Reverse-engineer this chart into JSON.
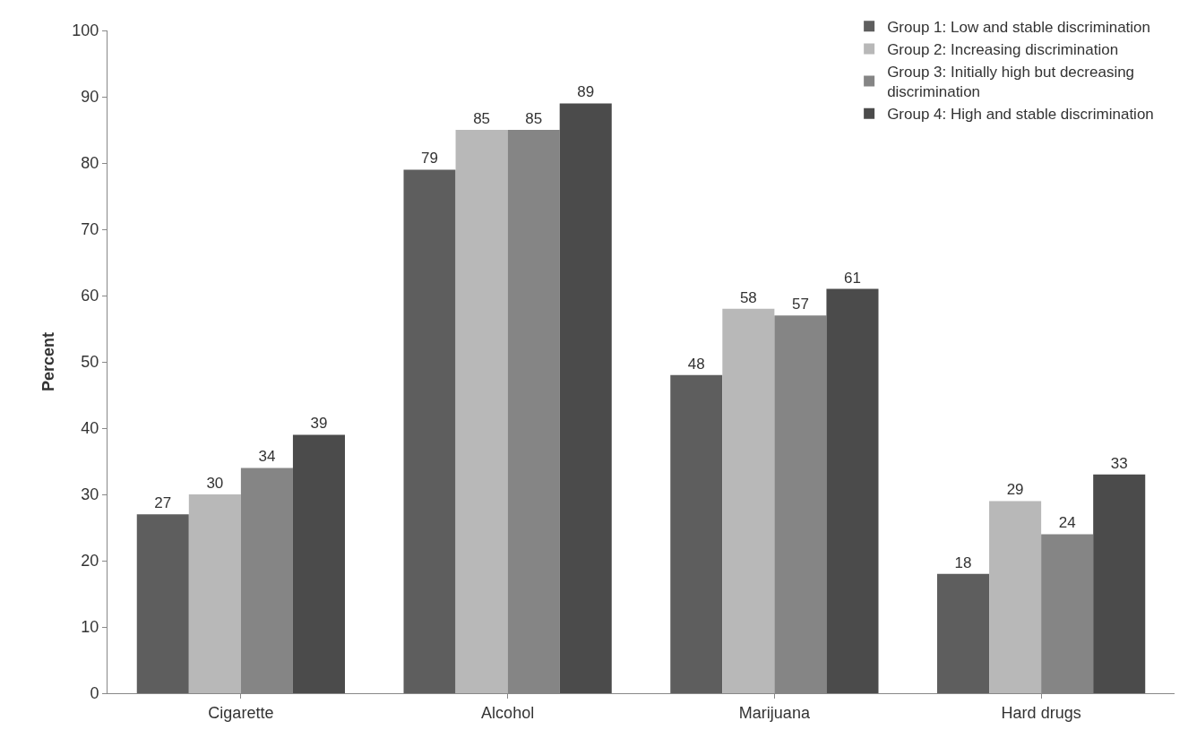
{
  "chart_data": {
    "type": "bar",
    "ylabel": "Percent",
    "categories": [
      "Cigarette",
      "Alcohol",
      "Marijuana",
      "Hard drugs"
    ],
    "series": [
      {
        "name": "Group 1: Low and stable discrimination",
        "color": "#5e5e5e",
        "values": [
          27,
          79,
          48,
          18
        ]
      },
      {
        "name": "Group 2: Increasing discrimination",
        "color": "#b8b8b8",
        "values": [
          30,
          85,
          58,
          29
        ]
      },
      {
        "name": "Group 3: Initially high but decreasing discrimination",
        "color": "#858585",
        "values": [
          34,
          85,
          57,
          24
        ]
      },
      {
        "name": "Group 4: High and stable discrimination",
        "color": "#4b4b4b",
        "values": [
          39,
          89,
          61,
          33
        ]
      }
    ],
    "ylim": [
      0,
      100
    ],
    "yticks": [
      0,
      10,
      20,
      30,
      40,
      50,
      60,
      70,
      80,
      90,
      100
    ],
    "legend": "top right",
    "data_labels": true
  }
}
